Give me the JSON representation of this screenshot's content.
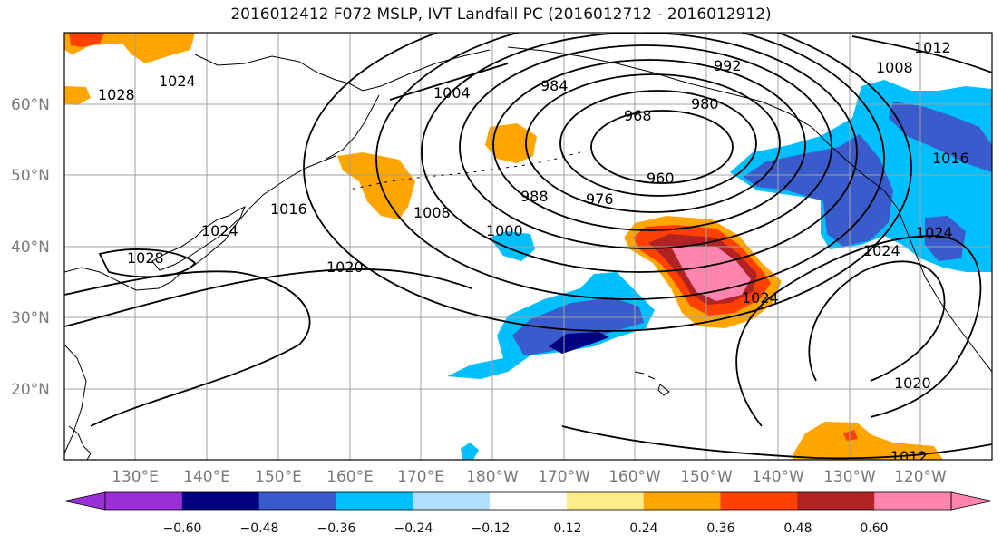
{
  "title": "2016012412 F072 MSLP, IVT Landfall PC (2016012712 - 2016012912)",
  "lat_labels": [
    "60°N",
    "50°N",
    "40°N",
    "30°N",
    "20°N"
  ],
  "lon_labels": [
    "130°E",
    "140°E",
    "150°E",
    "160°E",
    "170°E",
    "180°W",
    "170°W",
    "160°W",
    "150°W",
    "140°W",
    "130°W",
    "120°W"
  ],
  "contour_labels": [
    "992",
    "984",
    "968",
    "980",
    "960",
    "976",
    "988",
    "1000",
    "1008",
    "1016",
    "1024",
    "1020",
    "1028",
    "1004",
    "1024",
    "1028",
    "1012",
    "1008",
    "1016",
    "1024",
    "1024",
    "1020",
    "1012",
    "1024"
  ],
  "colorbar": {
    "ticks": [
      "−0.60",
      "−0.48",
      "−0.36",
      "−0.24",
      "−0.12",
      "0.12",
      "0.24",
      "0.36",
      "0.48",
      "0.60"
    ],
    "colors": [
      "#9b30d8",
      "#000080",
      "#3a5bcc",
      "#00bfff",
      "#b0e2ff",
      "#ffffff",
      "#ffec8b",
      "#ffa500",
      "#ff4000",
      "#b22222",
      "#ff85b0",
      "#ff85b0"
    ]
  },
  "colors": {
    "grid": "#a0a0a0",
    "contour": "#000000",
    "coast": "#000000"
  }
}
